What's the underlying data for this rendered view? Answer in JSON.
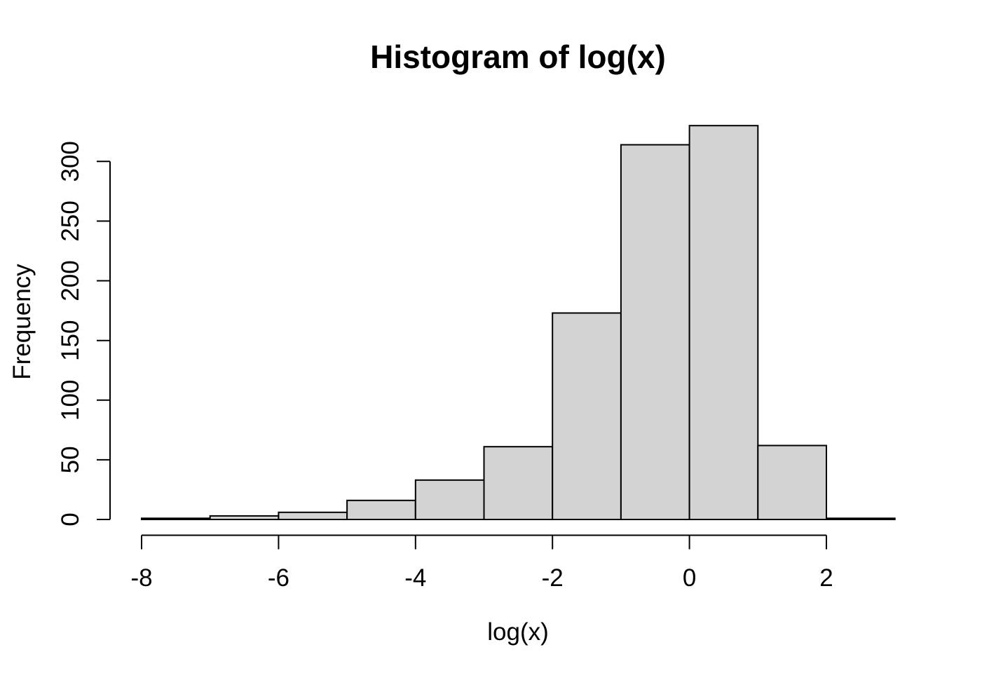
{
  "chart_data": {
    "type": "bar",
    "subtype": "histogram",
    "title": "Histogram of log(x)",
    "xlabel": "log(x)",
    "ylabel": "Frequency",
    "bin_breaks": [
      -8,
      -7,
      -6,
      -5,
      -4,
      -3,
      -2,
      -1,
      0,
      1,
      2,
      3
    ],
    "counts": [
      1,
      3,
      6,
      16,
      33,
      61,
      173,
      314,
      330,
      62,
      1
    ],
    "x_ticks": [
      "-8",
      "-6",
      "-4",
      "-2",
      "0",
      "2"
    ],
    "x_tick_values": [
      -8,
      -6,
      -4,
      -2,
      0,
      2
    ],
    "y_ticks": [
      "0",
      "50",
      "100",
      "150",
      "200",
      "250",
      "300"
    ],
    "y_tick_values": [
      0,
      50,
      100,
      150,
      200,
      250,
      300
    ],
    "xlim": [
      -8.44,
      3.44
    ],
    "ylim": [
      -13.2,
      343.2
    ],
    "grid": false,
    "legend_position": "none",
    "colors": {
      "bar_fill": "#D3D3D3",
      "bar_border": "#000000",
      "axis": "#000000",
      "text": "#000000",
      "background": "#FFFFFF"
    }
  }
}
